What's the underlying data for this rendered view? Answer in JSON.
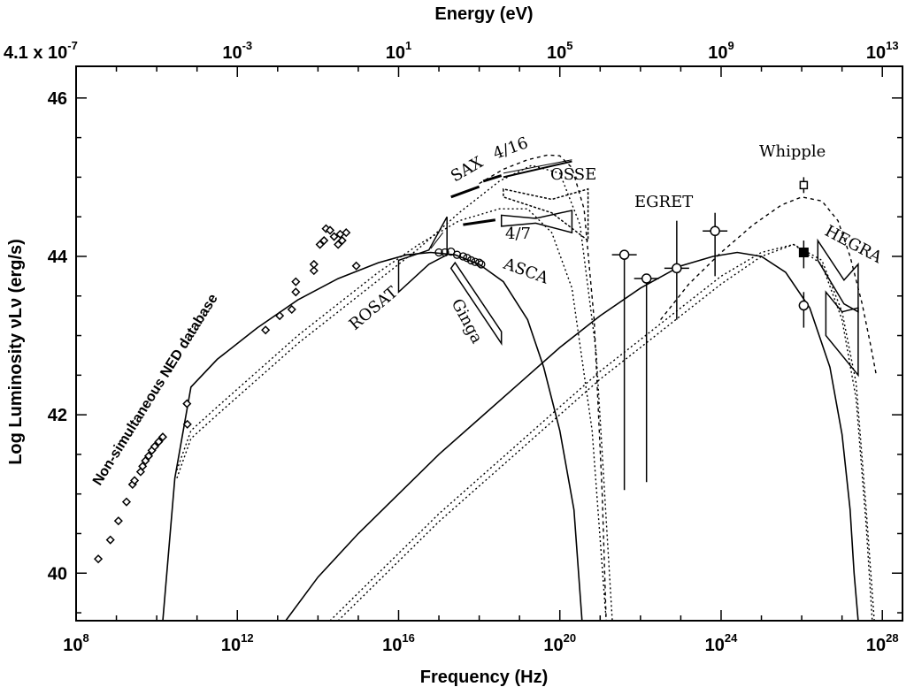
{
  "chart_data": {
    "type": "scatter",
    "xlabel": "Frequency (Hz)",
    "ylabel": "Log Luminosity νLν (erg/s)",
    "top_axis_label": "Energy (eV)",
    "xlim": [
      8,
      28.5
    ],
    "ylim": [
      39.4,
      46.4
    ],
    "x_scale": "log",
    "x_ticks": [
      8,
      12,
      16,
      20,
      24,
      28
    ],
    "y_ticks": [
      40,
      42,
      44,
      46
    ],
    "top_ticks": [
      {
        "base": "4.1 x 10",
        "exp": "-7"
      },
      {
        "base": "10",
        "exp": "-3"
      },
      {
        "base": "10",
        "exp": "1"
      },
      {
        "base": "10",
        "exp": "5"
      },
      {
        "base": "10",
        "exp": "9"
      },
      {
        "base": "10",
        "exp": "13"
      }
    ],
    "grid": false,
    "annotations": {
      "ned": "Non-simultaneous NED database",
      "sax": "SAX",
      "sax_416": "4/16",
      "osse": "OSSE",
      "ratio_47": "4/7",
      "rosat": "ROSAT",
      "asca": "ASCA",
      "ginga": "Ginga",
      "egret": "EGRET",
      "whipple": "Whipple",
      "hegra": "HEGRA"
    },
    "ned_points": [
      [
        8.55,
        40.18
      ],
      [
        8.85,
        40.42
      ],
      [
        9.05,
        40.66
      ],
      [
        9.25,
        40.9
      ],
      [
        9.4,
        41.12
      ],
      [
        9.45,
        41.17
      ],
      [
        9.6,
        41.28
      ],
      [
        9.65,
        41.35
      ],
      [
        9.72,
        41.42
      ],
      [
        9.8,
        41.48
      ],
      [
        9.88,
        41.55
      ],
      [
        9.95,
        41.6
      ],
      [
        10.05,
        41.66
      ],
      [
        10.15,
        41.72
      ],
      [
        10.75,
        42.14
      ],
      [
        10.76,
        41.88
      ],
      [
        12.7,
        43.07
      ],
      [
        13.05,
        43.25
      ],
      [
        13.35,
        43.33
      ],
      [
        13.45,
        43.68
      ],
      [
        13.45,
        43.55
      ],
      [
        13.9,
        43.82
      ],
      [
        13.9,
        43.9
      ],
      [
        14.05,
        44.15
      ],
      [
        14.15,
        44.2
      ],
      [
        14.2,
        44.35
      ],
      [
        14.3,
        44.33
      ],
      [
        14.4,
        44.25
      ],
      [
        14.5,
        44.15
      ],
      [
        14.55,
        44.28
      ],
      [
        14.6,
        44.2
      ],
      [
        14.7,
        44.3
      ],
      [
        14.95,
        43.88
      ]
    ],
    "asca_points": [
      [
        17.0,
        44.05
      ],
      [
        17.15,
        44.05
      ],
      [
        17.3,
        44.06
      ],
      [
        17.45,
        44.02
      ],
      [
        17.6,
        44.0
      ],
      [
        17.7,
        43.98
      ],
      [
        17.8,
        43.95
      ],
      [
        17.9,
        43.93
      ],
      [
        18.0,
        43.92
      ],
      [
        18.05,
        43.9
      ]
    ],
    "egret_points": [
      {
        "x": 21.6,
        "y": 44.02,
        "ylo": 41.05,
        "yhi": 44.02
      },
      {
        "x": 22.15,
        "y": 43.72,
        "ylo": 41.15,
        "yhi": 43.72
      },
      {
        "x": 22.9,
        "y": 43.85,
        "ylo": 43.2,
        "yhi": 44.45
      },
      {
        "x": 23.85,
        "y": 44.32,
        "ylo": 43.75,
        "yhi": 44.55
      }
    ],
    "whipple_points": [
      {
        "x": 26.05,
        "y": 44.9,
        "ylo": 44.8,
        "yhi": 45.0,
        "marker": "open-square"
      },
      {
        "x": 26.05,
        "y": 44.05,
        "ylo": 43.85,
        "yhi": 44.2,
        "marker": "filled-square"
      },
      {
        "x": 26.05,
        "y": 43.38,
        "ylo": 43.1,
        "yhi": 43.55,
        "marker": "open-circle"
      }
    ],
    "series": [
      {
        "style": "solid",
        "x": [
          10.15,
          10.45,
          10.85,
          11.5,
          12.5,
          13.5,
          14.5,
          15.5,
          16.2,
          16.8,
          17.4,
          18.0,
          18.6,
          19.2,
          19.6,
          20.0,
          20.35,
          20.55
        ],
        "y": [
          39.4,
          41.2,
          42.35,
          42.7,
          43.1,
          43.45,
          43.72,
          43.92,
          44.02,
          44.05,
          44.02,
          43.9,
          43.68,
          43.2,
          42.6,
          41.8,
          40.8,
          39.4
        ]
      },
      {
        "style": "dotted",
        "x": [
          10.5,
          10.85,
          11.5,
          12.5,
          13.5,
          14.5,
          15.5,
          16.5,
          17.5,
          18.5,
          19.2,
          19.8,
          20.3,
          20.8,
          21.15
        ],
        "y": [
          41.3,
          41.8,
          42.1,
          42.55,
          43.0,
          43.4,
          43.8,
          44.15,
          44.45,
          44.6,
          44.6,
          44.3,
          43.6,
          41.8,
          39.4
        ]
      },
      {
        "style": "dotted",
        "x": [
          10.5,
          10.85,
          11.5,
          12.5,
          13.5,
          14.5,
          15.5,
          16.5,
          17.5,
          18.5,
          19.3,
          20.0,
          20.5,
          20.9,
          21.3
        ],
        "y": [
          41.2,
          41.7,
          42.0,
          42.45,
          42.9,
          43.3,
          43.7,
          44.1,
          44.55,
          44.95,
          45.15,
          45.05,
          44.4,
          42.8,
          39.4
        ]
      },
      {
        "style": "dashed",
        "x": [
          18.0,
          18.6,
          19.2,
          19.7,
          20.0,
          20.3,
          20.6,
          20.85,
          21.05,
          21.15
        ],
        "y": [
          44.92,
          45.1,
          45.22,
          45.28,
          45.27,
          45.12,
          44.6,
          43.2,
          41.0,
          39.4
        ]
      },
      {
        "style": "solid",
        "x": [
          13.2,
          14.0,
          15.0,
          16.0,
          17.0,
          18.0,
          19.0,
          20.0,
          21.0,
          22.0,
          23.0,
          23.8,
          24.4,
          25.0,
          25.6,
          26.2,
          26.7,
          27.0,
          27.2,
          27.3,
          27.4
        ],
        "y": [
          39.4,
          39.95,
          40.5,
          41.0,
          41.5,
          41.95,
          42.4,
          42.85,
          43.25,
          43.6,
          43.88,
          44.0,
          44.05,
          44.0,
          43.8,
          43.35,
          42.6,
          41.75,
          40.8,
          40.0,
          39.4
        ]
      },
      {
        "style": "dotted",
        "x": [
          14.3,
          15.0,
          16.0,
          17.0,
          18.0,
          19.0,
          20.0,
          21.0,
          22.0,
          23.0,
          24.0,
          25.0,
          25.8,
          26.5,
          27.0,
          27.35,
          27.6,
          27.75
        ],
        "y": [
          39.4,
          39.75,
          40.25,
          40.75,
          41.2,
          41.65,
          42.1,
          42.55,
          42.95,
          43.35,
          43.75,
          44.05,
          44.15,
          43.9,
          43.2,
          42.2,
          40.6,
          39.4
        ]
      },
      {
        "style": "dotted",
        "x": [
          14.5,
          15.0,
          16.0,
          17.0,
          18.0,
          19.0,
          20.0,
          21.0,
          22.0,
          23.0,
          24.0,
          25.0,
          25.8,
          26.5,
          27.0,
          27.35,
          27.6,
          27.8
        ],
        "y": [
          39.4,
          39.65,
          40.15,
          40.65,
          41.1,
          41.55,
          42.0,
          42.45,
          42.85,
          43.25,
          43.65,
          44.0,
          44.15,
          43.95,
          43.3,
          42.4,
          40.8,
          39.4
        ]
      },
      {
        "style": "dashed",
        "x": [
          22.5,
          23.2,
          24.0,
          24.8,
          25.5,
          26.0,
          26.5,
          26.9,
          27.2,
          27.5,
          27.7,
          27.85
        ],
        "y": [
          43.2,
          43.65,
          44.05,
          44.4,
          44.65,
          44.75,
          44.7,
          44.45,
          44.0,
          43.4,
          42.9,
          42.5
        ]
      }
    ],
    "spectra": [
      {
        "name": "ROSAT",
        "polygon": [
          [
            16.0,
            43.55
          ],
          [
            16.0,
            43.95
          ],
          [
            16.75,
            44.08
          ],
          [
            17.2,
            44.5
          ],
          [
            17.2,
            44.02
          ],
          [
            16.75,
            43.9
          ]
        ]
      },
      {
        "name": "Ginga",
        "polygon": [
          [
            17.3,
            43.85
          ],
          [
            17.4,
            43.92
          ],
          [
            18.55,
            43.05
          ],
          [
            18.55,
            42.9
          ]
        ]
      },
      {
        "name": "OSSE",
        "polygon": [
          [
            18.6,
            44.85
          ],
          [
            18.6,
            44.75
          ],
          [
            19.8,
            44.55
          ],
          [
            20.7,
            44.2
          ],
          [
            20.7,
            44.85
          ],
          [
            19.8,
            44.72
          ]
        ]
      },
      {
        "name": "4/7",
        "polygon": [
          [
            18.55,
            44.52
          ],
          [
            18.55,
            44.38
          ],
          [
            19.4,
            44.42
          ],
          [
            20.3,
            44.3
          ],
          [
            20.3,
            44.58
          ],
          [
            19.4,
            44.48
          ]
        ]
      },
      {
        "name": "HEGRA-1",
        "polygon": [
          [
            26.4,
            44.2
          ],
          [
            26.4,
            43.95
          ],
          [
            27.05,
            43.4
          ],
          [
            27.4,
            43.3
          ],
          [
            27.4,
            43.9
          ],
          [
            27.05,
            43.7
          ]
        ]
      },
      {
        "name": "HEGRA-2",
        "polygon": [
          [
            26.6,
            43.55
          ],
          [
            26.6,
            43.0
          ],
          [
            27.4,
            42.5
          ],
          [
            27.4,
            43.35
          ],
          [
            27.0,
            43.3
          ]
        ]
      }
    ],
    "segments": [
      {
        "x": [
          17.3,
          18.0
        ],
        "y": [
          44.75,
          44.88
        ],
        "width": 3
      },
      {
        "x": [
          18.1,
          18.55
        ],
        "y": [
          44.95,
          45.02
        ],
        "width": 3
      },
      {
        "x": [
          18.6,
          20.3
        ],
        "y": [
          45.0,
          45.2
        ],
        "width": 2
      },
      {
        "x": [
          18.6,
          20.3
        ],
        "y": [
          45.05,
          45.22
        ],
        "width": 1
      },
      {
        "x": [
          17.6,
          18.4
        ],
        "y": [
          44.4,
          44.46
        ],
        "width": 3
      },
      {
        "x": [
          16.8,
          17.1
        ],
        "y": [
          44.1,
          44.3
        ],
        "width": 1
      }
    ]
  }
}
